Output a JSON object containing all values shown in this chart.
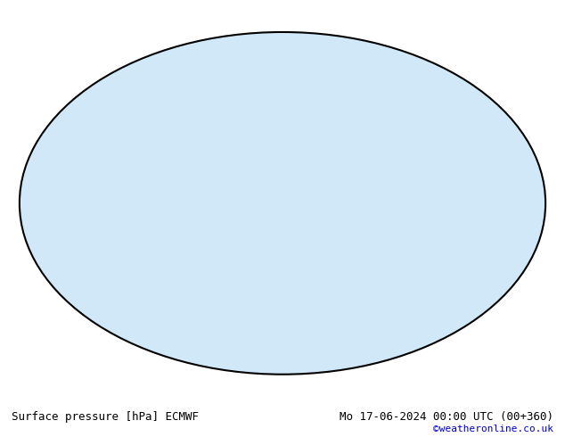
{
  "title_left": "Surface pressure [hPa] ECMWF",
  "title_right": "Mo 17-06-2024 00:00 UTC (00+360)",
  "copyright": "©weatheronline.co.uk",
  "background_color": "#ffffff",
  "map_background": "#f0f0f0",
  "land_color": "#c8e8a0",
  "ocean_color": "#e8e8e8",
  "contour_interval": 4,
  "p_min": 940,
  "p_max": 1040,
  "p_ref": 1013,
  "label_fontsize": 7,
  "title_fontsize": 9,
  "copyright_color": "#0000cc",
  "text_color": "#000000"
}
